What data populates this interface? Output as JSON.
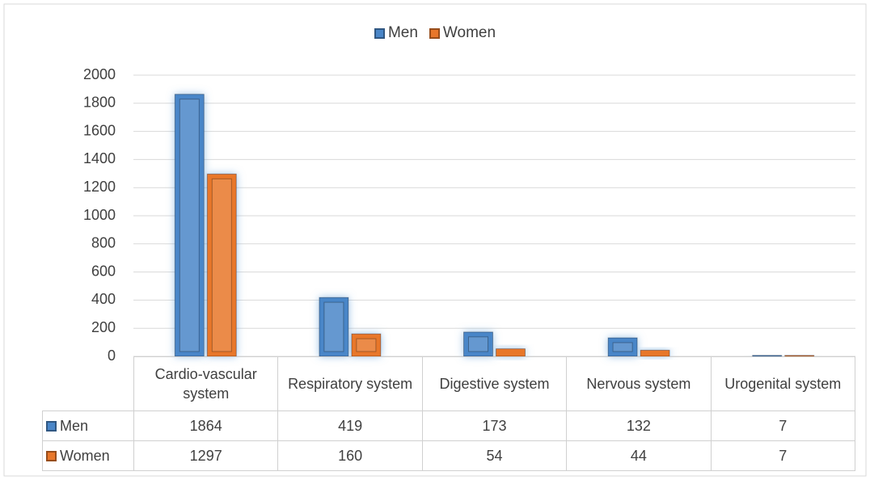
{
  "chart_data": {
    "type": "bar",
    "categories": [
      "Cardio-vascular system",
      "Respiratory system",
      "Digestive system",
      "Nervous system",
      "Urogenital system"
    ],
    "series": [
      {
        "name": "Men",
        "color": "#4a86c8",
        "values": [
          1864,
          419,
          173,
          132,
          7
        ]
      },
      {
        "name": "Women",
        "color": "#e8772a",
        "values": [
          1297,
          160,
          54,
          44,
          7
        ]
      }
    ],
    "ylim": [
      0,
      2000
    ],
    "yticks": [
      0,
      200,
      400,
      600,
      800,
      1000,
      1200,
      1400,
      1600,
      1800,
      2000
    ],
    "grid": true,
    "legend": "top"
  }
}
